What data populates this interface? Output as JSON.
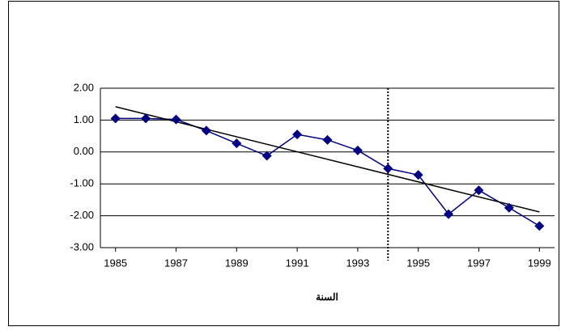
{
  "chart_data": {
    "type": "line",
    "x_label": "السنة",
    "x": [
      1985,
      1986,
      1987,
      1988,
      1989,
      1990,
      1991,
      1992,
      1993,
      1994,
      1995,
      1996,
      1997,
      1998,
      1999
    ],
    "values": [
      1.05,
      1.05,
      1.02,
      0.67,
      0.27,
      -0.12,
      0.55,
      0.38,
      0.05,
      -0.52,
      -0.72,
      -1.95,
      -1.2,
      -1.75,
      -2.32
    ],
    "color": "#000080",
    "trendline": {
      "x": [
        1985,
        1999
      ],
      "values": [
        1.42,
        -1.88
      ],
      "color": "#000000"
    },
    "vline": 1994,
    "xlim": [
      1984.5,
      1999.5
    ],
    "xticks": [
      1985,
      1987,
      1989,
      1991,
      1993,
      1995,
      1997,
      1999
    ],
    "ylim": [
      -3,
      2
    ],
    "yticks": [
      {
        "value": -3,
        "label": "-3.00"
      },
      {
        "value": -2,
        "label": "-2.00"
      },
      {
        "value": -1,
        "label": "-1.00"
      },
      {
        "value": 0,
        "label": "0.00"
      },
      {
        "value": 1,
        "label": "1.00"
      },
      {
        "value": 2,
        "label": "2.00"
      }
    ],
    "grid": true
  }
}
